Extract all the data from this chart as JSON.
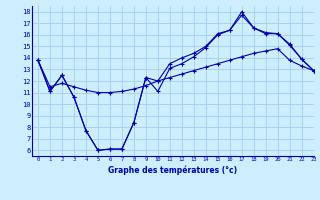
{
  "title": "Graphe des températures (°c)",
  "background_color": "#cceeff",
  "grid_color": "#aaccee",
  "line_color": "#0000aa",
  "xlim": [
    -0.5,
    23
  ],
  "ylim": [
    5.5,
    18.5
  ],
  "xlabel_ticks": [
    0,
    1,
    2,
    3,
    4,
    5,
    6,
    7,
    8,
    9,
    10,
    11,
    12,
    13,
    14,
    15,
    16,
    17,
    18,
    19,
    20,
    21,
    22,
    23
  ],
  "ylabel_ticks": [
    6,
    7,
    8,
    9,
    10,
    11,
    12,
    13,
    14,
    15,
    16,
    17,
    18
  ],
  "line1_x": [
    0,
    1,
    2,
    3,
    4,
    5,
    6,
    7,
    8,
    9,
    10,
    11,
    12,
    13,
    14,
    15,
    16,
    17,
    18,
    19,
    20,
    21,
    22,
    23
  ],
  "line1_y": [
    13.8,
    11.1,
    12.5,
    10.6,
    7.7,
    6.0,
    6.1,
    6.1,
    8.4,
    12.3,
    11.1,
    13.1,
    13.5,
    14.1,
    14.9,
    16.0,
    16.4,
    18.0,
    16.6,
    16.1,
    16.1,
    15.1,
    13.9,
    12.9
  ],
  "line2_x": [
    0,
    1,
    2,
    3,
    4,
    5,
    6,
    7,
    8,
    9,
    10,
    11,
    12,
    13,
    14,
    15,
    16,
    17,
    18,
    19,
    20,
    21,
    22,
    23
  ],
  "line2_y": [
    13.8,
    11.1,
    12.5,
    10.6,
    7.7,
    6.0,
    6.1,
    6.1,
    8.4,
    12.3,
    12.0,
    13.5,
    14.0,
    14.4,
    15.0,
    16.1,
    16.4,
    17.7,
    16.6,
    16.2,
    16.1,
    15.2,
    13.9,
    12.9
  ],
  "line3_x": [
    0,
    1,
    2,
    3,
    4,
    5,
    6,
    7,
    8,
    9,
    10,
    11,
    12,
    13,
    14,
    15,
    16,
    17,
    18,
    19,
    20,
    21,
    22,
    23
  ],
  "line3_y": [
    13.8,
    11.5,
    11.8,
    11.5,
    11.2,
    11.0,
    11.0,
    11.1,
    11.3,
    11.6,
    12.0,
    12.3,
    12.6,
    12.9,
    13.2,
    13.5,
    13.8,
    14.1,
    14.4,
    14.6,
    14.8,
    13.8,
    13.3,
    12.9
  ]
}
